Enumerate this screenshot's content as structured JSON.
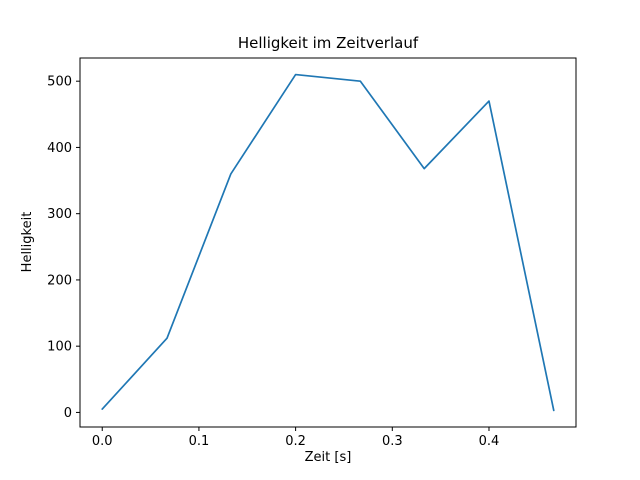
{
  "chart_data": {
    "type": "line",
    "title": "Helligkeit im Zeitverlauf",
    "xlabel": "Zeit [s]",
    "ylabel": "Helligkeit",
    "x": [
      0.0,
      0.067,
      0.133,
      0.2,
      0.267,
      0.333,
      0.4,
      0.467
    ],
    "y": [
      5,
      112,
      360,
      510,
      500,
      368,
      470,
      3
    ],
    "xlim": [
      -0.023,
      0.49
    ],
    "ylim": [
      -22,
      535
    ],
    "xticks": [
      0.0,
      0.1,
      0.2,
      0.3,
      0.4
    ],
    "xtick_labels": [
      "0.0",
      "0.1",
      "0.2",
      "0.3",
      "0.4"
    ],
    "yticks": [
      0,
      100,
      200,
      300,
      400,
      500
    ],
    "ytick_labels": [
      "0",
      "100",
      "200",
      "300",
      "400",
      "500"
    ],
    "line_color": "#1f77b4",
    "background_color": "#ffffff",
    "grid": false,
    "legend": null
  }
}
